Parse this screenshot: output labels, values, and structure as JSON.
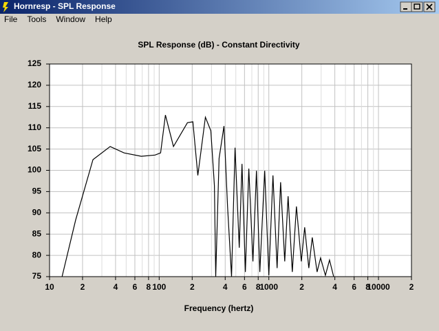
{
  "window_title": "Hornresp - SPL Response",
  "menu": [
    "File",
    "Tools",
    "Window",
    "Help"
  ],
  "chart_data": {
    "type": "line",
    "title": "SPL Response (dB) - Constant Directivity",
    "x_label": "Frequency (hertz)",
    "x_scale": "log",
    "grid": true,
    "xlim": [
      10,
      20000
    ],
    "ylim": [
      75,
      125
    ],
    "xticks": [
      10,
      {
        "value": 20,
        "label": "2"
      },
      {
        "value": 40,
        "label": "4"
      },
      {
        "value": 60,
        "label": "6"
      },
      {
        "value": 80,
        "label": "8"
      },
      100,
      {
        "value": 200,
        "label": "2"
      },
      {
        "value": 400,
        "label": "4"
      },
      {
        "value": 600,
        "label": "6"
      },
      {
        "value": 800,
        "label": "8"
      },
      1000,
      {
        "value": 2000,
        "label": "2"
      },
      {
        "value": 4000,
        "label": "4"
      },
      {
        "value": 6000,
        "label": "6"
      },
      {
        "value": 8000,
        "label": "8"
      },
      10000,
      {
        "value": 20000,
        "label": "2"
      }
    ],
    "minor_xticks": [
      30,
      50,
      70,
      90,
      300,
      500,
      700,
      900,
      3000,
      5000,
      7000,
      9000
    ],
    "yticks": [
      75,
      80,
      85,
      90,
      95,
      100,
      105,
      110,
      115,
      120,
      125
    ],
    "series": [
      {
        "color": "#000000",
        "x": [
          13,
          17.3,
          24.9,
          35.7,
          47.8,
          68.6,
          91.7,
          103,
          114,
          135,
          181,
          203,
          225,
          264,
          296,
          319,
          328,
          352,
          390,
          420,
          457,
          492,
          537,
          569,
          611,
          657,
          716,
          771,
          828,
          917,
          1000,
          1091,
          1189,
          1280,
          1396,
          1500,
          1637,
          1786,
          1977,
          2123,
          2317,
          2489,
          2754,
          2963,
          3281,
          3576,
          3899
        ],
        "values": [
          75,
          88.3,
          102.5,
          105.6,
          104.1,
          103.3,
          103.6,
          104.1,
          113,
          105.6,
          111.2,
          111.4,
          98.8,
          112.5,
          109.3,
          96.4,
          75,
          102.8,
          110.4,
          91.5,
          75,
          105.3,
          81.8,
          101.5,
          76.1,
          100.4,
          78.6,
          99.9,
          76.1,
          99.9,
          75.3,
          98.8,
          77,
          97.2,
          78.6,
          93.9,
          76.1,
          91.5,
          78.6,
          86.6,
          77,
          84.2,
          76.1,
          79.4,
          75.3,
          78.9,
          75
        ]
      }
    ]
  }
}
